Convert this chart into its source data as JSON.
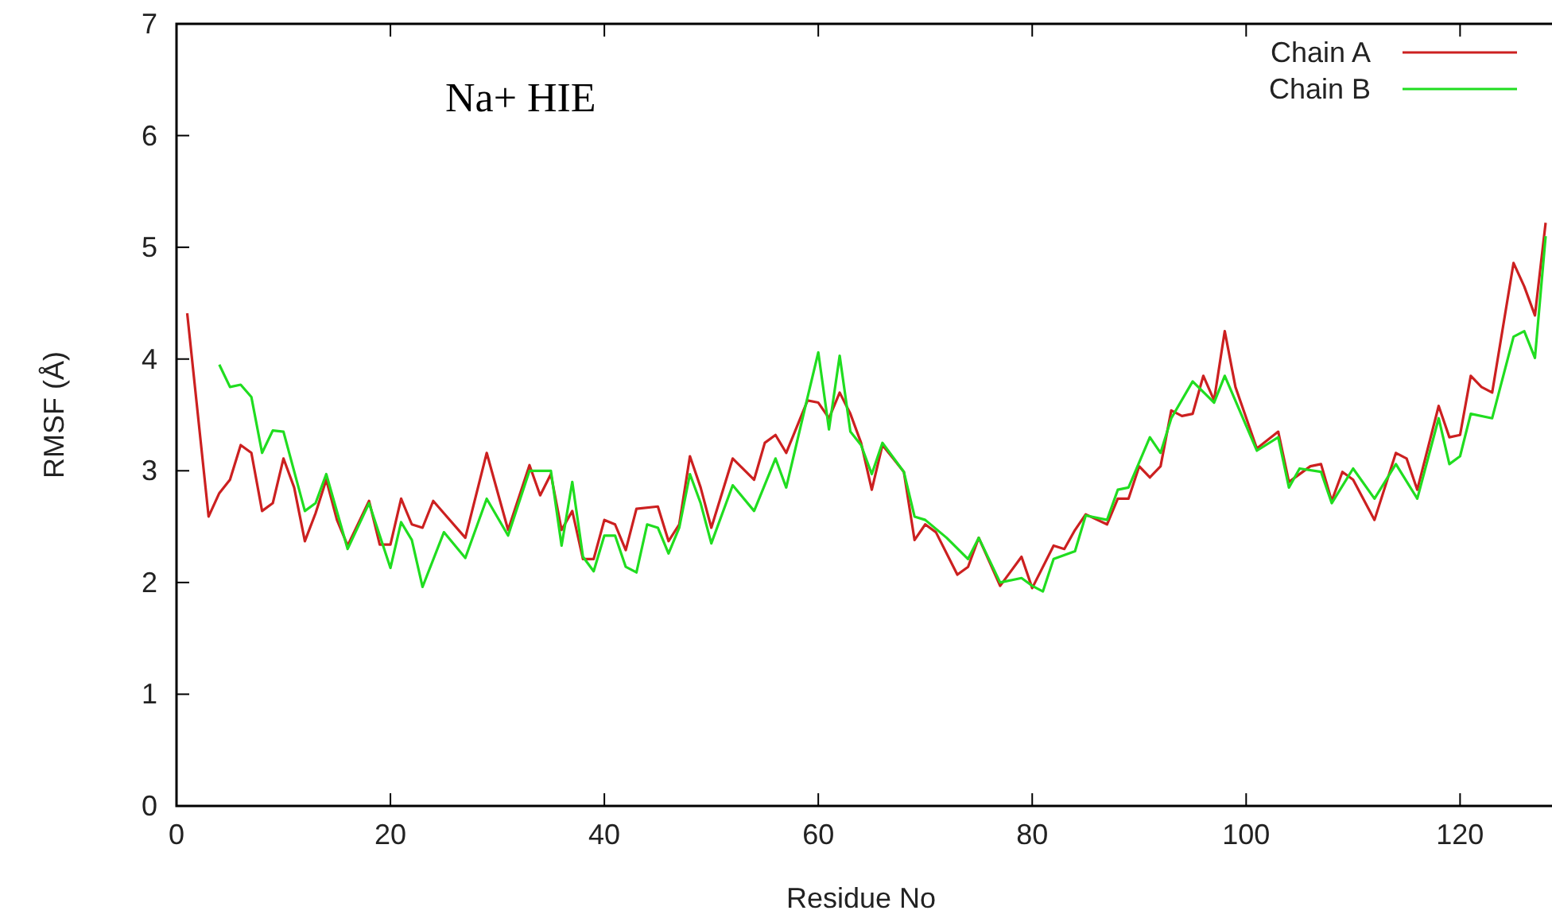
{
  "chart_data": {
    "type": "line",
    "xlabel": "Residue No",
    "ylabel": "RMSF (Å)",
    "annotations": [
      "Na+ HIE"
    ],
    "legend": "top right",
    "grid": false,
    "marker": "none",
    "line_style": "solid",
    "xlim": [
      0,
      128
    ],
    "xticks": [
      0,
      20,
      40,
      60,
      80,
      100,
      120
    ],
    "ylim": [
      0,
      7
    ],
    "yticks": [
      0,
      1,
      2,
      3,
      4,
      5,
      6,
      7
    ],
    "series": [
      {
        "name": "Chain A",
        "color": "#cc2020",
        "x": [
          1,
          3,
          4,
          5,
          6,
          7,
          8,
          9,
          10,
          11,
          12,
          13,
          14,
          15,
          16,
          18,
          19,
          20,
          21,
          22,
          23,
          24,
          25,
          27,
          29,
          31,
          33,
          34,
          35,
          36,
          37,
          38,
          39,
          40,
          41,
          42,
          43,
          45,
          46,
          47,
          48,
          49,
          50,
          52,
          54,
          55,
          56,
          57,
          59,
          60,
          61,
          62,
          63,
          64,
          65,
          66,
          67,
          68,
          69,
          70,
          71,
          73,
          74,
          75,
          77,
          79,
          80,
          82,
          83,
          84,
          85,
          87,
          88,
          89,
          90,
          91,
          92,
          93,
          94,
          95,
          96,
          97,
          98,
          99,
          101,
          103,
          104,
          106,
          107,
          108,
          109,
          110,
          112,
          114,
          115,
          116,
          118,
          119,
          120,
          121,
          122,
          123,
          125,
          126,
          127,
          128
        ],
        "values": [
          4.41,
          2.59,
          2.8,
          2.92,
          3.23,
          3.16,
          2.64,
          2.71,
          3.11,
          2.85,
          2.37,
          2.62,
          2.92,
          2.56,
          2.33,
          2.73,
          2.34,
          2.34,
          2.75,
          2.52,
          2.49,
          2.73,
          2.62,
          2.4,
          3.16,
          2.47,
          3.05,
          2.78,
          2.97,
          2.47,
          2.64,
          2.21,
          2.21,
          2.56,
          2.52,
          2.29,
          2.66,
          2.68,
          2.37,
          2.52,
          3.13,
          2.85,
          2.49,
          3.11,
          2.92,
          3.25,
          3.32,
          3.16,
          3.63,
          3.61,
          3.47,
          3.7,
          3.51,
          3.25,
          2.83,
          3.23,
          3.11,
          2.99,
          2.38,
          2.52,
          2.45,
          2.07,
          2.14,
          2.4,
          1.97,
          2.23,
          1.95,
          2.33,
          2.3,
          2.47,
          2.61,
          2.52,
          2.75,
          2.75,
          3.04,
          2.94,
          3.04,
          3.54,
          3.49,
          3.51,
          3.85,
          3.63,
          4.25,
          3.75,
          3.2,
          3.35,
          2.9,
          3.04,
          3.06,
          2.73,
          2.99,
          2.92,
          2.56,
          3.16,
          3.11,
          2.83,
          3.58,
          3.3,
          3.32,
          3.85,
          3.75,
          3.7,
          4.86,
          4.65,
          4.39,
          5.22
        ]
      },
      {
        "name": "Chain B",
        "color": "#20dd20",
        "x": [
          4,
          5,
          6,
          7,
          8,
          9,
          10,
          12,
          13,
          14,
          16,
          18,
          20,
          21,
          22,
          23,
          25,
          27,
          29,
          31,
          33,
          35,
          36,
          37,
          38,
          39,
          40,
          41,
          42,
          43,
          44,
          45,
          46,
          47,
          48,
          49,
          50,
          52,
          54,
          56,
          57,
          59,
          60,
          61,
          62,
          63,
          64,
          65,
          66,
          68,
          69,
          70,
          72,
          74,
          75,
          77,
          79,
          80,
          81,
          82,
          84,
          85,
          87,
          88,
          89,
          91,
          92,
          93,
          95,
          97,
          98,
          101,
          103,
          104,
          105,
          107,
          108,
          110,
          112,
          114,
          116,
          118,
          119,
          120,
          121,
          123,
          125,
          126,
          127,
          128
        ],
        "values": [
          3.95,
          3.75,
          3.77,
          3.66,
          3.16,
          3.36,
          3.35,
          2.64,
          2.71,
          2.97,
          2.3,
          2.71,
          2.13,
          2.54,
          2.38,
          1.96,
          2.45,
          2.22,
          2.75,
          2.42,
          3.0,
          3.0,
          2.33,
          2.9,
          2.23,
          2.1,
          2.42,
          2.42,
          2.14,
          2.09,
          2.52,
          2.49,
          2.26,
          2.49,
          2.97,
          2.71,
          2.35,
          2.87,
          2.64,
          3.11,
          2.85,
          3.66,
          4.06,
          3.37,
          4.03,
          3.35,
          3.23,
          2.97,
          3.25,
          2.99,
          2.59,
          2.56,
          2.4,
          2.21,
          2.4,
          2.0,
          2.04,
          1.97,
          1.92,
          2.21,
          2.28,
          2.6,
          2.56,
          2.83,
          2.85,
          3.3,
          3.16,
          3.47,
          3.8,
          3.61,
          3.85,
          3.18,
          3.3,
          2.85,
          3.02,
          2.99,
          2.71,
          3.02,
          2.75,
          3.06,
          2.75,
          3.47,
          3.06,
          3.13,
          3.51,
          3.47,
          4.2,
          4.25,
          4.01,
          5.1
        ]
      }
    ]
  }
}
